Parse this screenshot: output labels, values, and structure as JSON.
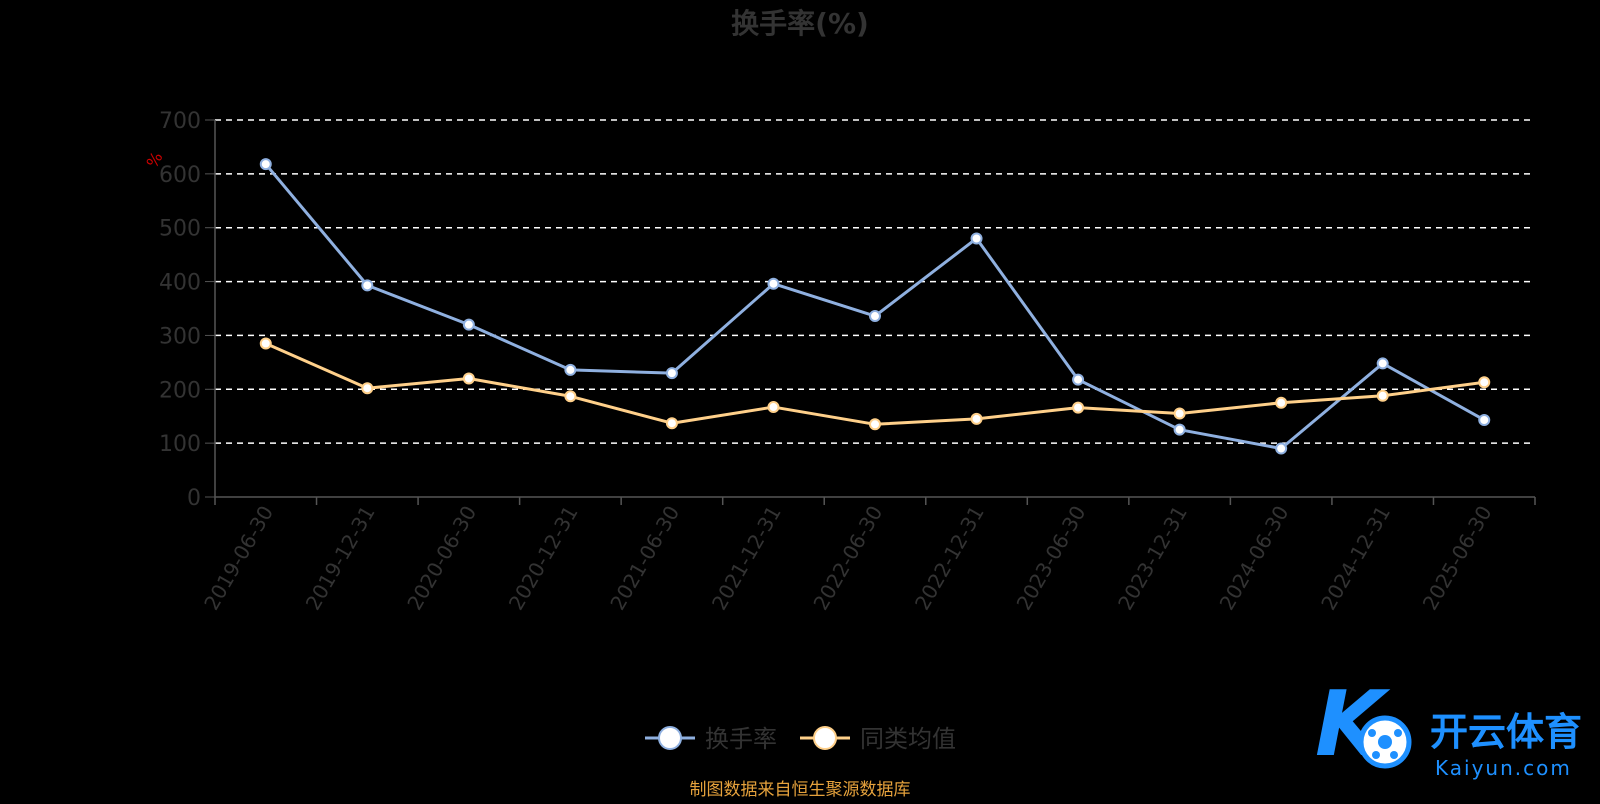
{
  "chart_data": {
    "type": "line",
    "title": "换手率(%)",
    "y_unit": "%",
    "ylim": [
      0,
      700
    ],
    "y_ticks": [
      "0",
      "100",
      "200",
      "300",
      "400",
      "500",
      "600",
      "700"
    ],
    "grid": "dashed horizontal",
    "legend_position": "bottom-center",
    "categories": [
      "2019-06-30",
      "2019-12-31",
      "2020-06-30",
      "2020-12-31",
      "2021-06-30",
      "2021-12-31",
      "2022-06-30",
      "2022-12-31",
      "2023-06-30",
      "2023-12-31",
      "2024-06-30",
      "2024-12-31",
      "2025-06-30"
    ],
    "series": [
      {
        "name": "换手率",
        "color": "#8fb0e0",
        "values": [
          618,
          393,
          320,
          236,
          230,
          396,
          336,
          480,
          218,
          125,
          90,
          248,
          143
        ]
      },
      {
        "name": "同类均值",
        "color": "#ffd08a",
        "values": [
          285,
          202,
          220,
          187,
          137,
          167,
          135,
          145,
          166,
          155,
          175,
          188,
          213
        ]
      }
    ]
  },
  "source_note": "制图数据来自恒生聚源数据库",
  "watermark": {
    "text": "开云体育",
    "sub": "Kaiyun.com"
  }
}
